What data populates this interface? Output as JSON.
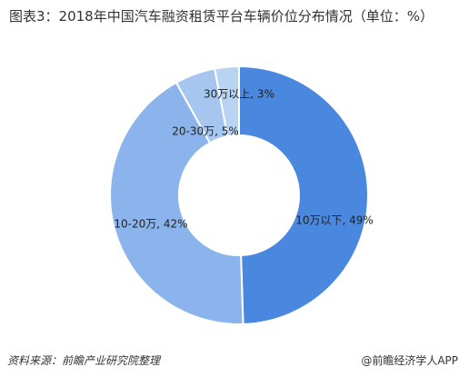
{
  "chart_data": {
    "type": "donut",
    "title": "图表3：2018年中国汽车融资租赁平台车辆价位分布情况（单位：%）",
    "values": [
      49,
      42,
      5,
      3
    ],
    "value_labels": [
      "10万以下, 49%",
      "10-20万, 42%",
      "20-30万, 5%",
      "30万以上, 3%"
    ],
    "colors": [
      "#4a88e0",
      "#8bb4ec",
      "#a6c6f0",
      "#b9d3f3"
    ],
    "source": "资料来源：前瞻产业研究院整理",
    "credit": "@前瞻经济学人APP"
  }
}
